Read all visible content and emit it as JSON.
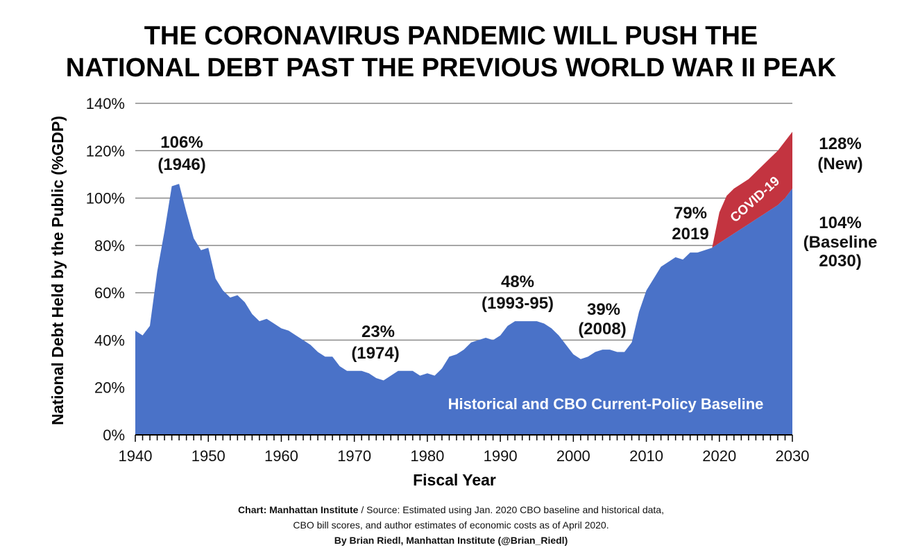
{
  "title_lines": [
    "THE CORONAVIRUS PANDEMIC WILL PUSH THE",
    "NATIONAL DEBT PAST THE PREVIOUS WORLD WAR II PEAK"
  ],
  "footer": {
    "credit_label": "Chart: Manhattan Institute",
    "separator": " / ",
    "source_line_1": "Source: Estimated using Jan. 2020 CBO baseline and historical data,",
    "source_line_2": "CBO bill scores, and author estimates of economic costs as of April 2020.",
    "byline": "By Brian Riedl, Manhattan Institute (@Brian_Riedl)"
  },
  "colors": {
    "baseline": "#4a72c8",
    "covid": "#c33440",
    "grid": "#8a8a8a"
  },
  "chart_data": {
    "type": "area",
    "xlabel": "Fiscal Year",
    "ylabel": "National Debt Held by the Public (%GDP)",
    "xlim": [
      1940,
      2030
    ],
    "ylim": [
      0,
      140
    ],
    "x_ticks": [
      "1940",
      "1950",
      "1960",
      "1970",
      "1980",
      "1990",
      "2000",
      "2010",
      "2020",
      "2030"
    ],
    "y_ticks": [
      "0%",
      "20%",
      "40%",
      "60%",
      "80%",
      "100%",
      "120%",
      "140%"
    ],
    "grid": "horizontal",
    "series": [
      {
        "name": "Historical and CBO Current-Policy Baseline",
        "color": "#4a72c8",
        "x": [
          1940,
          1941,
          1942,
          1943,
          1944,
          1945,
          1946,
          1947,
          1948,
          1949,
          1950,
          1951,
          1952,
          1953,
          1954,
          1955,
          1956,
          1957,
          1958,
          1959,
          1960,
          1961,
          1962,
          1963,
          1964,
          1965,
          1966,
          1967,
          1968,
          1969,
          1970,
          1971,
          1972,
          1973,
          1974,
          1975,
          1976,
          1977,
          1978,
          1979,
          1980,
          1981,
          1982,
          1983,
          1984,
          1985,
          1986,
          1987,
          1988,
          1989,
          1990,
          1991,
          1992,
          1993,
          1994,
          1995,
          1996,
          1997,
          1998,
          1999,
          2000,
          2001,
          2002,
          2003,
          2004,
          2005,
          2006,
          2007,
          2008,
          2009,
          2010,
          2011,
          2012,
          2013,
          2014,
          2015,
          2016,
          2017,
          2018,
          2019,
          2020,
          2021,
          2022,
          2023,
          2024,
          2025,
          2026,
          2027,
          2028,
          2029,
          2030
        ],
        "values": [
          44,
          42,
          46,
          69,
          86,
          105,
          106,
          94,
          83,
          78,
          79,
          66,
          61,
          58,
          59,
          56,
          51,
          48,
          49,
          47,
          45,
          44,
          42,
          40,
          38,
          35,
          33,
          33,
          29,
          27,
          27,
          27,
          26,
          24,
          23,
          25,
          27,
          27,
          27,
          25,
          26,
          25,
          28,
          33,
          34,
          36,
          39,
          40,
          41,
          40,
          42,
          46,
          48,
          48,
          48,
          48,
          47,
          45,
          42,
          38,
          34,
          32,
          33,
          35,
          36,
          36,
          35,
          35,
          39,
          52,
          61,
          66,
          71,
          73,
          75,
          74,
          77,
          77,
          78,
          79,
          81,
          83,
          85,
          87,
          89,
          91,
          93,
          95,
          97,
          100,
          104
        ]
      },
      {
        "name": "COVID-19",
        "color": "#c33440",
        "x": [
          2019,
          2020,
          2021,
          2022,
          2023,
          2024,
          2025,
          2026,
          2027,
          2028,
          2029,
          2030
        ],
        "values": [
          79,
          94,
          101,
          104,
          106,
          108,
          111,
          114,
          117,
          120,
          124,
          128
        ]
      }
    ],
    "annotations": [
      {
        "label_1": "106%",
        "label_2": "(1946)"
      },
      {
        "label_1": "23%",
        "label_2": "(1974)"
      },
      {
        "label_1": "48%",
        "label_2": "(1993-95)"
      },
      {
        "label_1": "39%",
        "label_2": "(2008)"
      },
      {
        "label_1": "79%",
        "label_2": "2019"
      },
      {
        "label_1": "128%",
        "label_2": "(New)"
      },
      {
        "label_1": "104%",
        "label_2": "(Baseline",
        "label_3": "2030)"
      }
    ],
    "inner_labels": {
      "baseline": "Historical and CBO Current-Policy Baseline",
      "covid": "COVID-19"
    }
  }
}
